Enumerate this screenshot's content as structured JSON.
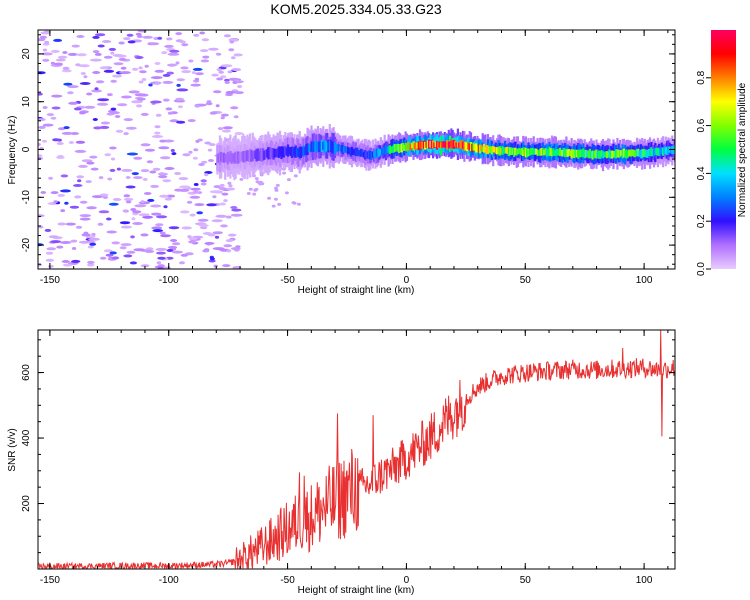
{
  "figure": {
    "title": "KOM5.2025.334.05.33.G23"
  },
  "chart_data": [
    {
      "type": "heatmap",
      "title": "KOM5.2025.334.05.33.G23",
      "xlabel": "Height of straight line (km)",
      "ylabel": "Frequency (Hz)",
      "xlim": [
        -155,
        113
      ],
      "ylim": [
        -25,
        25
      ],
      "xticks": [
        -150,
        -100,
        -50,
        0,
        50,
        100
      ],
      "yticks": [
        -20,
        -10,
        0,
        10,
        20
      ],
      "noise_region_x": [
        -155,
        -70
      ],
      "signal_trace": {
        "x": [
          -80,
          -70,
          -60,
          -50,
          -45,
          -40,
          -35,
          -30,
          -25,
          -20,
          -15,
          -10,
          -5,
          0,
          10,
          20,
          30,
          40,
          50,
          60,
          70,
          80,
          90,
          100,
          110
        ],
        "frequency": [
          -1.8,
          -1.6,
          -1.0,
          -0.3,
          -0.6,
          0.5,
          0.8,
          0.4,
          -0.2,
          -0.8,
          -1.2,
          -0.3,
          0.3,
          0.6,
          1.0,
          1.1,
          0.2,
          -0.3,
          -0.5,
          -0.6,
          -0.8,
          -1.0,
          -0.9,
          -0.8,
          -0.2
        ],
        "amplitude": [
          0.12,
          0.1,
          0.15,
          0.2,
          0.22,
          0.28,
          0.3,
          0.28,
          0.25,
          0.22,
          0.25,
          0.35,
          0.5,
          0.65,
          0.9,
          0.95,
          0.7,
          0.6,
          0.55,
          0.6,
          0.55,
          0.5,
          0.55,
          0.45,
          0.35
        ]
      },
      "colorbar": {
        "label": "Normalized spectral amplitude",
        "range": [
          0,
          1
        ],
        "ticks": [
          "0.0",
          "0.2",
          "0.4",
          "0.6",
          "0.8"
        ],
        "colors": [
          "#e8ccff",
          "#b070ff",
          "#3010ff",
          "#0080ff",
          "#00e0ff",
          "#00ff40",
          "#80ff00",
          "#ffff00",
          "#ff8000",
          "#ff0000",
          "#ff0060"
        ]
      }
    },
    {
      "type": "line",
      "xlabel": "Height of straight line (km)",
      "ylabel": "SNR (v/v)",
      "xlim": [
        -155,
        113
      ],
      "ylim": [
        0,
        730
      ],
      "xticks": [
        -150,
        -100,
        -50,
        0,
        50,
        100
      ],
      "yticks": [
        200,
        400,
        600
      ],
      "series": [
        {
          "name": "SNR",
          "color": "#e83030",
          "x": [
            -155,
            -140,
            -120,
            -100,
            -90,
            -80,
            -75,
            -70,
            -65,
            -60,
            -55,
            -50,
            -45,
            -40,
            -35,
            -30,
            -25,
            -20,
            -15,
            -10,
            -5,
            0,
            5,
            10,
            15,
            20,
            25,
            30,
            35,
            40,
            50,
            60,
            70,
            80,
            90,
            100,
            105,
            110,
            113
          ],
          "values": [
            8,
            8,
            10,
            10,
            12,
            14,
            18,
            28,
            50,
            70,
            95,
            120,
            145,
            160,
            185,
            205,
            230,
            250,
            260,
            290,
            310,
            340,
            370,
            400,
            440,
            480,
            520,
            555,
            575,
            590,
            600,
            605,
            610,
            608,
            612,
            615,
            610,
            612,
            615
          ]
        }
      ],
      "spikes": [
        {
          "x": -45,
          "value": 295
        },
        {
          "x": -43,
          "value": 285
        },
        {
          "x": -29,
          "value": 475
        },
        {
          "x": -14,
          "value": 470
        },
        {
          "x": 91,
          "value": 675
        },
        {
          "x": 107,
          "value": 730
        },
        {
          "x": 107.5,
          "value": 405
        }
      ]
    }
  ]
}
